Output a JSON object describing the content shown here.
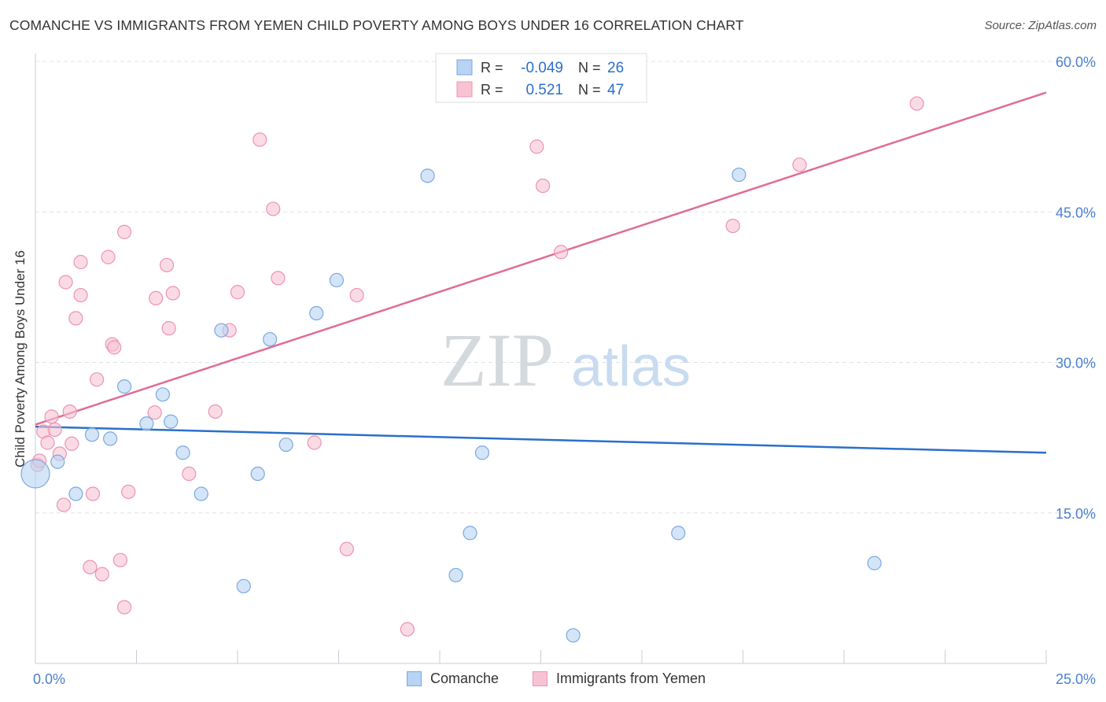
{
  "title": "COMANCHE VS IMMIGRANTS FROM YEMEN CHILD POVERTY AMONG BOYS UNDER 16 CORRELATION CHART",
  "source": "Source: ZipAtlas.com",
  "watermark": {
    "zip": "ZIP",
    "atlas": "atlas"
  },
  "colors": {
    "blue_fill": "#b8d3f3",
    "blue_stroke": "#7aa9e0",
    "blue_line": "#2a6fcc",
    "pink_fill": "#f7c3d3",
    "pink_stroke": "#ec93b0",
    "pink_line": "#e06c97",
    "tick_label": "#4a7fd0",
    "grid": "#dde3ea"
  },
  "stats_legend": [
    {
      "r_label": "R =",
      "r_value": "-0.049",
      "n_label": "N =",
      "n_value": "26"
    },
    {
      "r_label": "R =",
      "r_value": "0.521",
      "n_label": "N =",
      "n_value": "47"
    }
  ],
  "bottom_legend": [
    "Comanche",
    "Immigrants from Yemen"
  ],
  "chart_data": {
    "type": "scatter",
    "title": "COMANCHE VS IMMIGRANTS FROM YEMEN CHILD POVERTY AMONG BOYS UNDER 16 CORRELATION CHART",
    "xlabel": "",
    "ylabel": "Child Poverty Among Boys Under 16",
    "xlim": [
      0,
      25
    ],
    "ylim": [
      0,
      60
    ],
    "x_tick_labels": [
      "0.0%",
      "25.0%"
    ],
    "y_ticks": [
      15,
      30,
      45,
      60
    ],
    "y_tick_labels": [
      "15.0%",
      "30.0%",
      "45.0%",
      "60.0%"
    ],
    "grid": true,
    "series": [
      {
        "name": "Comanche",
        "color": "#b8d3f3",
        "points": [
          {
            "x": 0.0,
            "y": 18.9,
            "large": true
          },
          {
            "x": 0.55,
            "y": 20.1
          },
          {
            "x": 1.0,
            "y": 16.9
          },
          {
            "x": 1.4,
            "y": 22.8
          },
          {
            "x": 1.85,
            "y": 22.4
          },
          {
            "x": 2.2,
            "y": 27.6
          },
          {
            "x": 2.75,
            "y": 23.9
          },
          {
            "x": 3.15,
            "y": 26.8
          },
          {
            "x": 3.35,
            "y": 24.1
          },
          {
            "x": 3.65,
            "y": 21.0
          },
          {
            "x": 4.1,
            "y": 16.9
          },
          {
            "x": 4.6,
            "y": 33.2
          },
          {
            "x": 5.15,
            "y": 7.7
          },
          {
            "x": 5.5,
            "y": 18.9
          },
          {
            "x": 5.8,
            "y": 32.3
          },
          {
            "x": 6.2,
            "y": 21.8
          },
          {
            "x": 6.95,
            "y": 34.9
          },
          {
            "x": 7.45,
            "y": 38.2
          },
          {
            "x": 9.7,
            "y": 48.6
          },
          {
            "x": 10.4,
            "y": 8.8
          },
          {
            "x": 10.75,
            "y": 13.0
          },
          {
            "x": 11.05,
            "y": 21.0
          },
          {
            "x": 13.3,
            "y": 2.8
          },
          {
            "x": 15.9,
            "y": 13.0
          },
          {
            "x": 17.4,
            "y": 48.7
          },
          {
            "x": 20.75,
            "y": 10.0
          }
        ],
        "trend": {
          "x": [
            0,
            25
          ],
          "y": [
            23.6,
            21.0
          ]
        }
      },
      {
        "name": "Immigrants from Yemen",
        "color": "#f7c3d3",
        "points": [
          {
            "x": 0.05,
            "y": 19.8
          },
          {
            "x": 0.1,
            "y": 20.2
          },
          {
            "x": 0.2,
            "y": 23.1
          },
          {
            "x": 0.3,
            "y": 22.0
          },
          {
            "x": 0.4,
            "y": 24.6
          },
          {
            "x": 0.48,
            "y": 23.3
          },
          {
            "x": 0.6,
            "y": 20.9
          },
          {
            "x": 0.7,
            "y": 15.8
          },
          {
            "x": 0.75,
            "y": 38.0
          },
          {
            "x": 0.85,
            "y": 25.1
          },
          {
            "x": 0.9,
            "y": 21.9
          },
          {
            "x": 1.0,
            "y": 34.4
          },
          {
            "x": 1.12,
            "y": 40.0
          },
          {
            "x": 1.12,
            "y": 36.7
          },
          {
            "x": 1.35,
            "y": 9.6
          },
          {
            "x": 1.42,
            "y": 16.9
          },
          {
            "x": 1.52,
            "y": 28.3
          },
          {
            "x": 1.65,
            "y": 8.9
          },
          {
            "x": 1.8,
            "y": 40.5
          },
          {
            "x": 1.9,
            "y": 31.8
          },
          {
            "x": 1.95,
            "y": 31.5
          },
          {
            "x": 2.1,
            "y": 10.3
          },
          {
            "x": 2.2,
            "y": 43.0
          },
          {
            "x": 2.2,
            "y": 5.6
          },
          {
            "x": 2.3,
            "y": 17.1
          },
          {
            "x": 2.95,
            "y": 25.0
          },
          {
            "x": 2.98,
            "y": 36.4
          },
          {
            "x": 3.25,
            "y": 39.7
          },
          {
            "x": 3.3,
            "y": 33.4
          },
          {
            "x": 3.4,
            "y": 36.9
          },
          {
            "x": 3.8,
            "y": 18.9
          },
          {
            "x": 4.45,
            "y": 25.1
          },
          {
            "x": 4.8,
            "y": 33.2
          },
          {
            "x": 5.0,
            "y": 37.0
          },
          {
            "x": 5.55,
            "y": 52.2
          },
          {
            "x": 5.88,
            "y": 45.3
          },
          {
            "x": 6.0,
            "y": 38.4
          },
          {
            "x": 6.9,
            "y": 22.0
          },
          {
            "x": 7.7,
            "y": 11.4
          },
          {
            "x": 7.95,
            "y": 36.7
          },
          {
            "x": 9.2,
            "y": 3.4
          },
          {
            "x": 12.4,
            "y": 51.5
          },
          {
            "x": 12.55,
            "y": 47.6
          },
          {
            "x": 13.0,
            "y": 41.0
          },
          {
            "x": 17.25,
            "y": 43.6
          },
          {
            "x": 18.9,
            "y": 49.7
          },
          {
            "x": 21.8,
            "y": 55.8
          }
        ],
        "trend": {
          "x": [
            0,
            25
          ],
          "y": [
            23.8,
            56.9
          ]
        }
      }
    ]
  }
}
